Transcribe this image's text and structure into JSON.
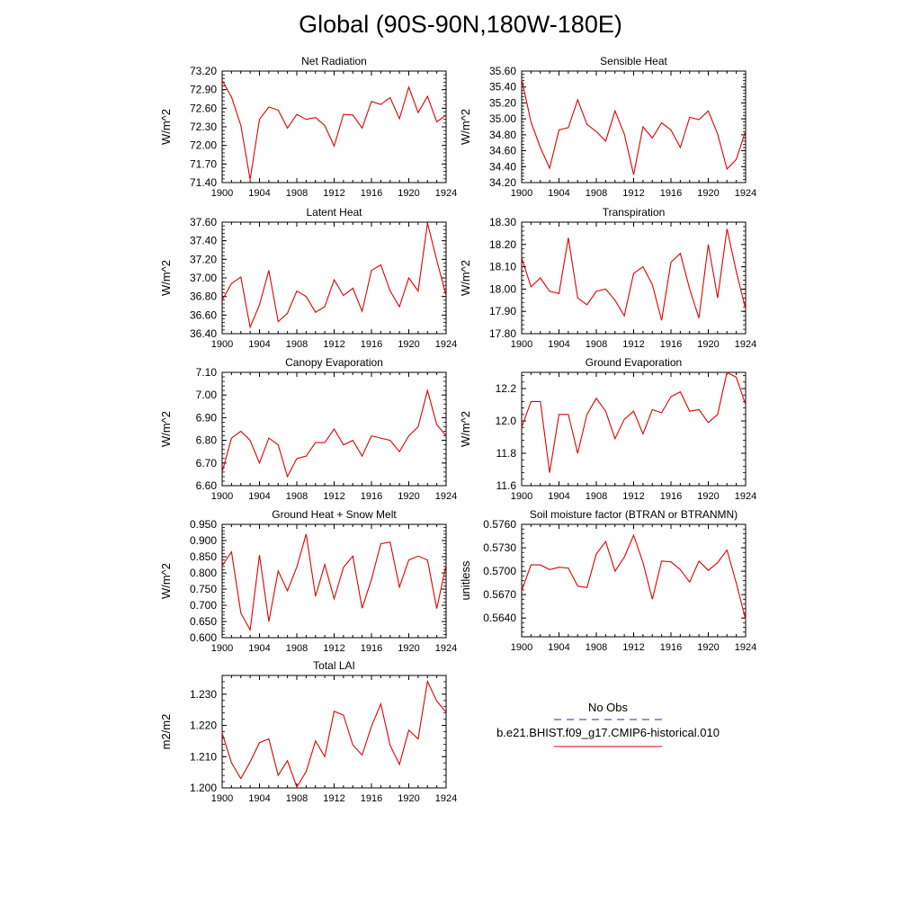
{
  "title": "Global (90S-90N,180W-180E)",
  "legend": {
    "obs_label": "No Obs",
    "obs_color": "#2f2fa0",
    "model_label": "b.e21.BHIST.f09_g17.CMIP6-historical.010",
    "model_color": "#e00000"
  },
  "chart_data": [
    {
      "type": "line",
      "title": "Net Radiation",
      "ylabel": "W/m^2",
      "xlim": [
        1900,
        1924
      ],
      "ylim": [
        71.4,
        73.2
      ],
      "xticks": [
        "1900",
        "1904",
        "1908",
        "1912",
        "1916",
        "1920",
        "1924"
      ],
      "yticks": [
        "71.40",
        "71.70",
        "72.00",
        "72.30",
        "72.60",
        "72.90",
        "73.20"
      ],
      "series": [
        {
          "x": [
            1900,
            1901,
            1902,
            1903,
            1904,
            1905,
            1906,
            1907,
            1908,
            1909,
            1910,
            1911,
            1912,
            1913,
            1914,
            1915,
            1916,
            1917,
            1918,
            1919,
            1920,
            1921,
            1922,
            1923,
            1924
          ],
          "values": [
            73.05,
            72.78,
            72.32,
            71.45,
            72.42,
            72.62,
            72.57,
            72.28,
            72.5,
            72.42,
            72.45,
            72.32,
            71.99,
            72.5,
            72.49,
            72.28,
            72.71,
            72.66,
            72.77,
            72.43,
            72.94,
            72.53,
            72.79,
            72.38,
            72.49
          ]
        }
      ]
    },
    {
      "type": "line",
      "title": "Sensible Heat",
      "ylabel": "W/m^2",
      "xlim": [
        1900,
        1924
      ],
      "ylim": [
        34.2,
        35.6
      ],
      "xticks": [
        "1900",
        "1904",
        "1908",
        "1912",
        "1916",
        "1920",
        "1924"
      ],
      "yticks": [
        "34.20",
        "34.40",
        "34.60",
        "34.80",
        "35.00",
        "35.20",
        "35.40",
        "35.60"
      ],
      "series": [
        {
          "x": [
            1900,
            1901,
            1902,
            1903,
            1904,
            1905,
            1906,
            1907,
            1908,
            1909,
            1910,
            1911,
            1912,
            1913,
            1914,
            1915,
            1916,
            1917,
            1918,
            1919,
            1920,
            1921,
            1922,
            1923,
            1924
          ],
          "values": [
            35.5,
            34.96,
            34.64,
            34.38,
            34.86,
            34.89,
            35.24,
            34.93,
            34.84,
            34.72,
            35.1,
            34.81,
            34.3,
            34.9,
            34.76,
            34.95,
            34.86,
            34.64,
            35.02,
            34.99,
            35.1,
            34.81,
            34.37,
            34.49,
            34.85
          ]
        }
      ]
    },
    {
      "type": "line",
      "title": "Latent Heat",
      "ylabel": "W/m^2",
      "xlim": [
        1900,
        1924
      ],
      "ylim": [
        36.4,
        37.6
      ],
      "xticks": [
        "1900",
        "1904",
        "1908",
        "1912",
        "1916",
        "1920",
        "1924"
      ],
      "yticks": [
        "36.40",
        "36.60",
        "36.80",
        "37.00",
        "37.20",
        "37.40",
        "37.60"
      ],
      "series": [
        {
          "x": [
            1900,
            1901,
            1902,
            1903,
            1904,
            1905,
            1906,
            1907,
            1908,
            1909,
            1910,
            1911,
            1912,
            1913,
            1914,
            1915,
            1916,
            1917,
            1918,
            1919,
            1920,
            1921,
            1922,
            1923,
            1924
          ],
          "values": [
            36.76,
            36.94,
            37.01,
            36.47,
            36.71,
            37.08,
            36.53,
            36.62,
            36.86,
            36.8,
            36.63,
            36.69,
            36.98,
            36.81,
            36.89,
            36.64,
            37.08,
            37.14,
            36.86,
            36.69,
            37.0,
            36.86,
            37.59,
            37.19,
            36.81
          ]
        }
      ]
    },
    {
      "type": "line",
      "title": "Transpiration",
      "ylabel": "W/m^2",
      "xlim": [
        1900,
        1924
      ],
      "ylim": [
        17.8,
        18.3
      ],
      "xticks": [
        "1900",
        "1904",
        "1908",
        "1912",
        "1916",
        "1920",
        "1924"
      ],
      "yticks": [
        "17.80",
        "17.90",
        "18.00",
        "18.10",
        "18.20",
        "18.30"
      ],
      "series": [
        {
          "x": [
            1900,
            1901,
            1902,
            1903,
            1904,
            1905,
            1906,
            1907,
            1908,
            1909,
            1910,
            1911,
            1912,
            1913,
            1914,
            1915,
            1916,
            1917,
            1918,
            1919,
            1920,
            1921,
            1922,
            1923,
            1924
          ],
          "values": [
            18.14,
            18.01,
            18.05,
            17.99,
            17.98,
            18.23,
            17.96,
            17.93,
            17.99,
            18.0,
            17.95,
            17.88,
            18.07,
            18.1,
            18.02,
            17.86,
            18.12,
            18.16,
            18.0,
            17.87,
            18.2,
            17.96,
            18.27,
            18.08,
            17.91
          ]
        }
      ]
    },
    {
      "type": "line",
      "title": "Canopy Evaporation",
      "ylabel": "W/m^2",
      "xlim": [
        1900,
        1924
      ],
      "ylim": [
        6.6,
        7.1
      ],
      "xticks": [
        "1900",
        "1904",
        "1908",
        "1912",
        "1916",
        "1920",
        "1924"
      ],
      "yticks": [
        "6.60",
        "6.70",
        "6.80",
        "6.90",
        "7.00",
        "7.10"
      ],
      "series": [
        {
          "x": [
            1900,
            1901,
            1902,
            1903,
            1904,
            1905,
            1906,
            1907,
            1908,
            1909,
            1910,
            1911,
            1912,
            1913,
            1914,
            1915,
            1916,
            1917,
            1918,
            1919,
            1920,
            1921,
            1922,
            1923,
            1924
          ],
          "values": [
            6.66,
            6.81,
            6.84,
            6.8,
            6.7,
            6.81,
            6.78,
            6.64,
            6.72,
            6.73,
            6.79,
            6.79,
            6.85,
            6.78,
            6.8,
            6.73,
            6.82,
            6.81,
            6.8,
            6.75,
            6.82,
            6.86,
            7.02,
            6.87,
            6.82
          ]
        }
      ]
    },
    {
      "type": "line",
      "title": "Ground Evaporation",
      "ylabel": "W/m^2",
      "xlim": [
        1900,
        1924
      ],
      "ylim": [
        11.6,
        12.3
      ],
      "xticks": [
        "1900",
        "1904",
        "1908",
        "1912",
        "1916",
        "1920",
        "1924"
      ],
      "yticks": [
        "11.6",
        "11.8",
        "12.0",
        "12.2"
      ],
      "series": [
        {
          "x": [
            1900,
            1901,
            1902,
            1903,
            1904,
            1905,
            1906,
            1907,
            1908,
            1909,
            1910,
            1911,
            1912,
            1913,
            1914,
            1915,
            1916,
            1917,
            1918,
            1919,
            1920,
            1921,
            1922,
            1923,
            1924
          ],
          "values": [
            11.96,
            12.12,
            12.12,
            11.68,
            12.04,
            12.04,
            11.8,
            12.04,
            12.14,
            12.06,
            11.89,
            12.01,
            12.06,
            11.92,
            12.07,
            12.05,
            12.15,
            12.18,
            12.06,
            12.07,
            11.99,
            12.04,
            12.3,
            12.27,
            12.1
          ]
        }
      ]
    },
    {
      "type": "line",
      "title": "Ground Heat + Snow Melt",
      "ylabel": "W/m^2",
      "xlim": [
        1900,
        1924
      ],
      "ylim": [
        0.6,
        0.95
      ],
      "xticks": [
        "1900",
        "1904",
        "1908",
        "1912",
        "1916",
        "1920",
        "1924"
      ],
      "yticks": [
        "0.600",
        "0.650",
        "0.700",
        "0.750",
        "0.800",
        "0.850",
        "0.900",
        "0.950"
      ],
      "series": [
        {
          "x": [
            1900,
            1901,
            1902,
            1903,
            1904,
            1905,
            1906,
            1907,
            1908,
            1909,
            1910,
            1911,
            1912,
            1913,
            1914,
            1915,
            1916,
            1917,
            1918,
            1919,
            1920,
            1921,
            1922,
            1923,
            1924
          ],
          "values": [
            0.822,
            0.865,
            0.676,
            0.624,
            0.855,
            0.65,
            0.806,
            0.745,
            0.818,
            0.92,
            0.728,
            0.826,
            0.72,
            0.817,
            0.852,
            0.691,
            0.78,
            0.89,
            0.895,
            0.756,
            0.84,
            0.852,
            0.84,
            0.69,
            0.825
          ]
        }
      ]
    },
    {
      "type": "line",
      "title": "Soil moisture factor (BTRAN or BTRANMN)",
      "ylabel": "unitless",
      "xlim": [
        1900,
        1924
      ],
      "ylim": [
        0.5616,
        0.576
      ],
      "xticks": [
        "1900",
        "1904",
        "1908",
        "1912",
        "1916",
        "1920",
        "1924"
      ],
      "yticks": [
        "0.5640",
        "0.5670",
        "0.5700",
        "0.5730",
        "0.5760"
      ],
      "series": [
        {
          "x": [
            1900,
            1901,
            1902,
            1903,
            1904,
            1905,
            1906,
            1907,
            1908,
            1909,
            1910,
            1911,
            1912,
            1913,
            1914,
            1915,
            1916,
            1917,
            1918,
            1919,
            1920,
            1921,
            1922,
            1923,
            1924
          ],
          "values": [
            0.5675,
            0.5708,
            0.5708,
            0.5702,
            0.5705,
            0.5704,
            0.5681,
            0.5679,
            0.5722,
            0.5738,
            0.57,
            0.5718,
            0.5746,
            0.5711,
            0.5664,
            0.5713,
            0.5712,
            0.5702,
            0.5686,
            0.5713,
            0.5701,
            0.5711,
            0.5727,
            0.5685,
            0.5638
          ]
        }
      ]
    },
    {
      "type": "line",
      "title": "Total LAI",
      "ylabel": "m2/m2",
      "xlim": [
        1900,
        1924
      ],
      "ylim": [
        1.2,
        1.236
      ],
      "xticks": [
        "1900",
        "1904",
        "1908",
        "1912",
        "1916",
        "1920",
        "1924"
      ],
      "yticks": [
        "1.200",
        "1.210",
        "1.220",
        "1.230"
      ],
      "series": [
        {
          "x": [
            1900,
            1901,
            1902,
            1903,
            1904,
            1905,
            1906,
            1907,
            1908,
            1909,
            1910,
            1911,
            1912,
            1913,
            1914,
            1915,
            1916,
            1917,
            1918,
            1919,
            1920,
            1921,
            1922,
            1923,
            1924
          ],
          "values": [
            1.2175,
            1.208,
            1.203,
            1.2083,
            1.2145,
            1.2157,
            1.204,
            1.2087,
            1.2003,
            1.2052,
            1.215,
            1.21,
            1.2245,
            1.2233,
            1.2137,
            1.2105,
            1.2197,
            1.2269,
            1.2136,
            1.2075,
            1.2185,
            1.2157,
            1.2341,
            1.2278,
            1.2242
          ]
        }
      ]
    }
  ]
}
